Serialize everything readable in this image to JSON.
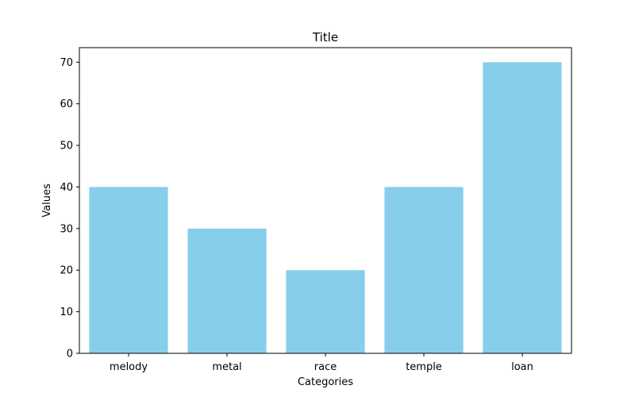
{
  "chart_data": {
    "type": "bar",
    "title": "Title",
    "xlabel": "Categories",
    "ylabel": "Values",
    "categories": [
      "melody",
      "metal",
      "race",
      "temple",
      "loan"
    ],
    "values": [
      40,
      30,
      20,
      40,
      70
    ],
    "ylim": [
      0,
      73.5
    ],
    "yticks": [
      0,
      10,
      20,
      30,
      40,
      50,
      60,
      70
    ],
    "grid": false,
    "legend": "none",
    "colors": {
      "bar": "#87ceeb",
      "axes": "#000000",
      "background": "#ffffff"
    }
  }
}
